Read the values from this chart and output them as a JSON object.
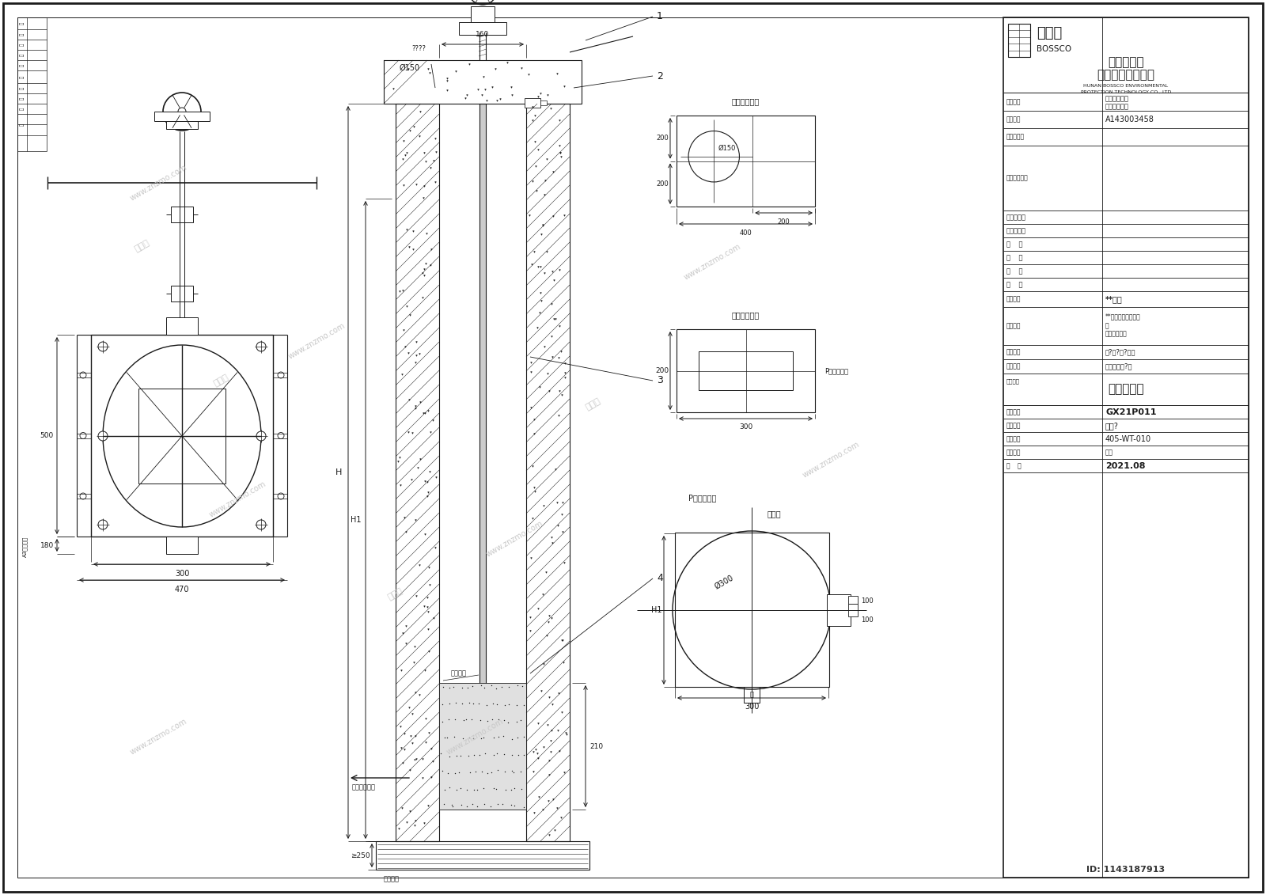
{
  "bg_color": "#ffffff",
  "lc": "#1a1a1a",
  "company_cn1": "湖南博世科",
  "company_cn2": "环保科技有限公司",
  "company_en1": "HUNAN BOSSCO ENVIRONMENTAL",
  "company_en2": "PROTECTION TECHNOLOGY CO., LTD",
  "cert_num": "A143003458",
  "project_num": "GX21P011",
  "design_stage": "施工?",
  "drawing_num": "405-WT-010",
  "date": "2021.08",
  "drawing_title": "闸门大样图",
  "main_title": "核?生?修?工程",
  "sub_title": "思源湖活水?站",
  "project_owner": "**大学",
  "id_tag": "ID: 1143187913"
}
